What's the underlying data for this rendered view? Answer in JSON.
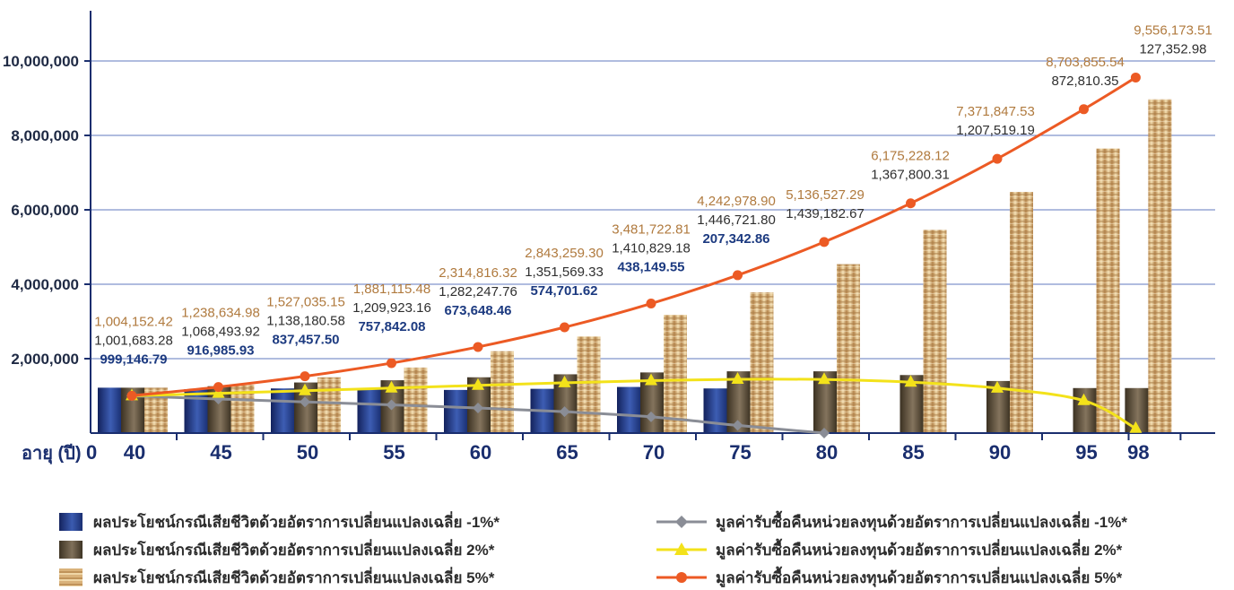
{
  "chart_data": {
    "type": "bar",
    "x": [
      "40",
      "45",
      "50",
      "55",
      "60",
      "65",
      "70",
      "75",
      "80",
      "85",
      "90",
      "95",
      "98"
    ],
    "xlabel": "อายุ (ปี)",
    "x_origin_label": "0",
    "ylim": [
      0,
      10000000
    ],
    "y_ticks": [
      "2,000,000",
      "4,000,000",
      "6,000,000",
      "8,000,000",
      "10,000,000"
    ],
    "y_tick_values": [
      2000000,
      4000000,
      6000000,
      8000000,
      10000000
    ],
    "grid": "horizontal",
    "legend_position": "bottom",
    "bar_series": [
      {
        "name": "ผลประโยชน์กรณีเสียชีวิตด้วยอัตราการเปลี่ยนแปลงเฉลี่ย -1%*",
        "color": "#1f3577",
        "values": [
          1220000,
          1180000,
          1200000,
          1200000,
          1160000,
          1190000,
          1240000,
          1200000,
          null,
          null,
          null,
          null,
          null
        ]
      },
      {
        "name": "ผลประโยชน์กรณีเสียชีวิตด้วยอัตราการเปลี่ยนแปลงเฉลี่ย 2%*",
        "color": "#5e5242",
        "values": [
          1220000,
          1260000,
          1360000,
          1420000,
          1500000,
          1580000,
          1630000,
          1660000,
          1660000,
          1560000,
          1400000,
          1210000,
          1210000
        ]
      },
      {
        "name": "ผลประโยชน์กรณีเสียชีวิตด้วยอัตราการเปลี่ยนแปลงเฉลี่ย 5%*",
        "color": "#d3a96c",
        "values": [
          1220000,
          1300000,
          1500000,
          1760000,
          2200000,
          2600000,
          3180000,
          3780000,
          4540000,
          5460000,
          6480000,
          7650000,
          8970000
        ]
      }
    ],
    "line_series": [
      {
        "name": "มูลค่ารับซื้อคืนหน่วยลงทุนด้วยอัตราการเปลี่ยนแปลงเฉลี่ย -1%*",
        "color": "#8a8d96",
        "marker": "diamond",
        "values": [
          999146.79,
          916985.93,
          837457.5,
          757842.08,
          673648.46,
          574701.62,
          438149.55,
          207342.86,
          0,
          null,
          null,
          null,
          null
        ]
      },
      {
        "name": "มูลค่ารับซื้อคืนหน่วยลงทุนด้วยอัตราการเปลี่ยนแปลงเฉลี่ย 2%*",
        "color": "#f3e21a",
        "marker": "triangle",
        "values": [
          1001683.28,
          1068493.92,
          1138180.58,
          1209923.16,
          1282247.76,
          1351569.33,
          1410829.18,
          1446721.8,
          1439182.67,
          1367800.31,
          1207519.19,
          872810.35,
          127352.98
        ]
      },
      {
        "name": "มูลค่ารับซื้อคืนหน่วยลงทุนด้วยอัตราการเปลี่ยนแปลงเฉลี่ย 5%*",
        "color": "#ec5a24",
        "marker": "circle",
        "values": [
          1004152.42,
          1238634.98,
          1527035.15,
          1881115.48,
          2314816.32,
          2843259.3,
          3481722.81,
          4242978.9,
          5136527.29,
          6175228.12,
          7371847.53,
          8703855.54,
          9556173.51
        ]
      }
    ],
    "data_labels": [
      {
        "x": "40",
        "r5": "1,004,152.42",
        "r2": "1,001,683.28",
        "rm1": "999,146.79"
      },
      {
        "x": "45",
        "r5": "1,238,634.98",
        "r2": "1,068,493.92",
        "rm1": "916,985.93"
      },
      {
        "x": "50",
        "r5": "1,527,035.15",
        "r2": "1,138,180.58",
        "rm1": "837,457.50"
      },
      {
        "x": "55",
        "r5": "1,881,115.48",
        "r2": "1,209,923.16",
        "rm1": "757,842.08"
      },
      {
        "x": "60",
        "r5": "2,314,816.32",
        "r2": "1,282,247.76",
        "rm1": "673,648.46"
      },
      {
        "x": "65",
        "r5": "2,843,259.30",
        "r2": "1,351,569.33",
        "rm1": "574,701.62"
      },
      {
        "x": "70",
        "r5": "3,481,722.81",
        "r2": "1,410,829.18",
        "rm1": "438,149.55"
      },
      {
        "x": "75",
        "r5": "4,242,978.90",
        "r2": "1,446,721.80",
        "rm1": "207,342.86"
      },
      {
        "x": "80",
        "r5": "5,136,527.29",
        "r2": "1,439,182.67",
        "rm1": ""
      },
      {
        "x": "85",
        "r5": "6,175,228.12",
        "r2": "1,367,800.31",
        "rm1": ""
      },
      {
        "x": "90",
        "r5": "7,371,847.53",
        "r2": "1,207,519.19",
        "rm1": ""
      },
      {
        "x": "95",
        "r5": "8,703,855.54",
        "r2": "872,810.35",
        "rm1": ""
      },
      {
        "x": "98",
        "r5": "9,556,173.51",
        "r2": "127,352.98",
        "rm1": ""
      }
    ]
  },
  "legend": {
    "bar_m1": "ผลประโยชน์กรณีเสียชีวิตด้วยอัตราการเปลี่ยนแปลงเฉลี่ย -1%*",
    "bar_2": "ผลประโยชน์กรณีเสียชีวิตด้วยอัตราการเปลี่ยนแปลงเฉลี่ย 2%*",
    "bar_5": "ผลประโยชน์กรณีเสียชีวิตด้วยอัตราการเปลี่ยนแปลงเฉลี่ย 5%*",
    "line_m1": "มูลค่ารับซื้อคืนหน่วยลงทุนด้วยอัตราการเปลี่ยนแปลงเฉลี่ย -1%*",
    "line_2": "มูลค่ารับซื้อคืนหน่วยลงทุนด้วยอัตราการเปลี่ยนแปลงเฉลี่ย 2%*",
    "line_5": "มูลค่ารับซื้อคืนหน่วยลงทุนด้วยอัตราการเปลี่ยนแปลงเฉลี่ย 5%*"
  }
}
